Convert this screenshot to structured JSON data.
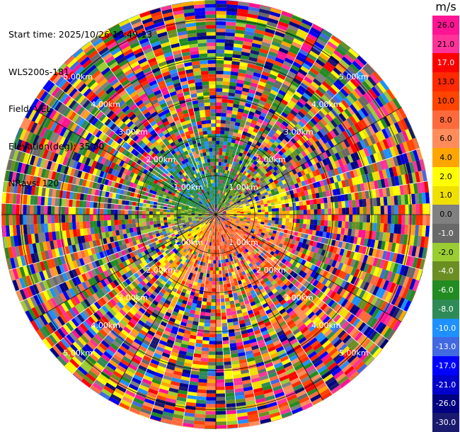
{
  "info": {
    "start_time": "Start time: 2025/10/26 10:49:13",
    "site": "WLS200s-181",
    "field": "Field: VEL",
    "elevation": "Elevation(deg): 35.00",
    "nrays": "NRays: 120"
  },
  "chart_data": {
    "type": "heatmap",
    "subtype": "ppi-polar",
    "title": "",
    "range_unit": "km",
    "range_rings": [
      1.0,
      2.0,
      3.0,
      4.0,
      5.0
    ],
    "range_ring_labels": [
      "1.00km",
      "2.00km",
      "3.00km",
      "4.00km",
      "5.00km"
    ],
    "max_range": 5.5,
    "colorbar": {
      "unit": "m/s",
      "levels": [
        "26.0",
        "21.0",
        "17.0",
        "13.0",
        "10.0",
        "8.0",
        "6.0",
        "4.0",
        "2.0",
        "1.0",
        "0.0",
        "-1.0",
        "-2.0",
        "-4.0",
        "-6.0",
        "-8.0",
        "-10.0",
        "-13.0",
        "-17.0",
        "-21.0",
        "-26.0",
        "-30.0"
      ],
      "colors": [
        "#ff1493",
        "#ff3399",
        "#ff0000",
        "#ff2a00",
        "#ff4500",
        "#ff6a3c",
        "#ff8c5a",
        "#ffa500",
        "#ffff00",
        "#f0e000",
        "#808080",
        "#696969",
        "#9acd32",
        "#6b8e23",
        "#228b22",
        "#2e8b57",
        "#1e90ff",
        "#4169e1",
        "#0000ff",
        "#0000cd",
        "#000080",
        "#191970"
      ]
    }
  }
}
